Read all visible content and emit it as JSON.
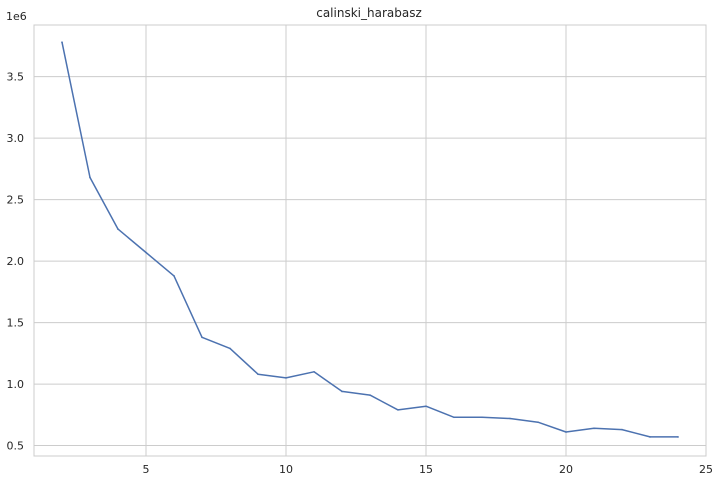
{
  "chart_data": {
    "type": "line",
    "title": "calinski_harabasz",
    "xlabel": "",
    "ylabel": "",
    "y_offset_label": "1e6",
    "xlim": [
      1.0,
      25.0
    ],
    "ylim": [
      0.415,
      3.92
    ],
    "x_ticks": [
      5,
      10,
      15,
      20,
      25
    ],
    "x_tick_labels": [
      "5",
      "10",
      "15",
      "20",
      "25"
    ],
    "y_ticks": [
      0.5,
      1.0,
      1.5,
      2.0,
      2.5,
      3.0,
      3.5
    ],
    "y_tick_labels": [
      "0.5",
      "1.0",
      "1.5",
      "2.0",
      "2.5",
      "3.0",
      "3.5"
    ],
    "grid": true,
    "line_color": "#4c72b0",
    "series": [
      {
        "x": [
          2,
          3,
          4,
          5,
          6,
          7,
          8,
          9,
          10,
          11,
          12,
          13,
          14,
          15,
          16,
          17,
          18,
          19,
          20,
          21,
          22,
          23,
          24
        ],
        "values": [
          3.78,
          2.68,
          2.26,
          2.07,
          1.88,
          1.38,
          1.29,
          1.08,
          1.05,
          1.1,
          0.94,
          0.91,
          0.79,
          0.82,
          0.73,
          0.73,
          0.72,
          0.69,
          0.61,
          0.64,
          0.63,
          0.57,
          0.57
        ]
      }
    ]
  }
}
